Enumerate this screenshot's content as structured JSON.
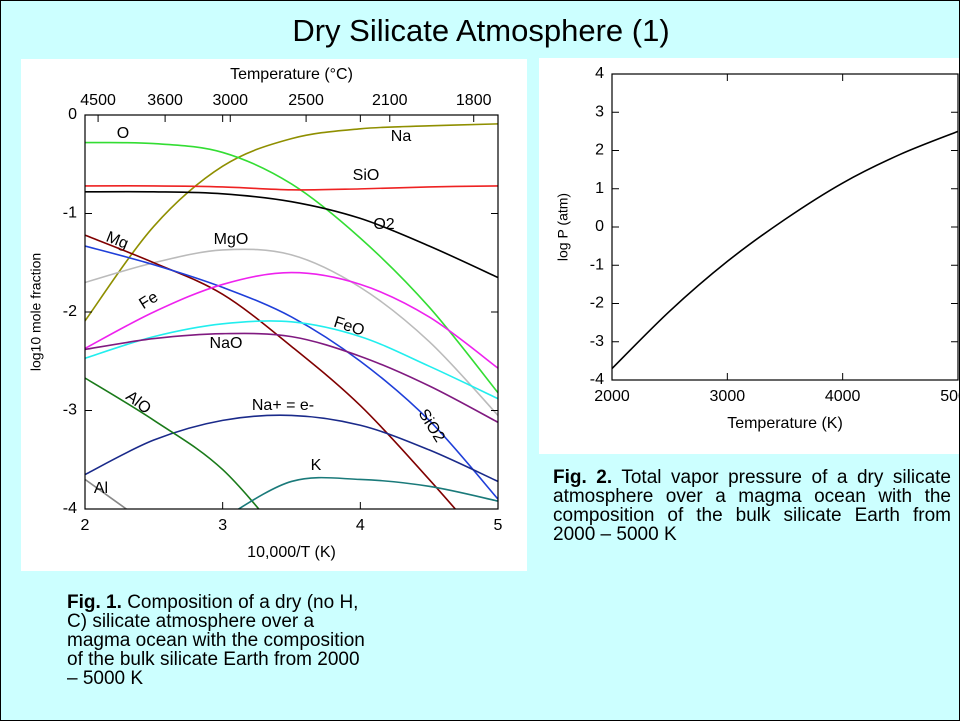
{
  "title": "Dry Silicate Atmosphere (1)",
  "chart_data": [
    {
      "type": "line",
      "xlabel": "10,000/T (K)",
      "ylabel": "log10 mole fraction",
      "x2label": "Temperature (°C)",
      "caption_label": "Fig. 1.",
      "caption": "Composition of a dry (no H, C) silicate atmosphere over a magma ocean with the composition of the bulk silicate Earth from 2000 – 5000 K",
      "x": [
        2,
        2.5,
        3,
        3.5,
        4,
        4.5,
        5
      ],
      "xlim": [
        2,
        5
      ],
      "xticks": [
        2,
        3,
        4,
        5
      ],
      "ylim": [
        -4,
        0
      ],
      "yticks": [
        0,
        -1,
        -2,
        -3,
        -4
      ],
      "x2ticks": [
        4500,
        3600,
        3000,
        2500,
        2100,
        1800
      ],
      "series": [
        {
          "name": "Na",
          "color": "#8f8f00",
          "values": [
            -2.09,
            -1.13,
            -0.52,
            -0.24,
            -0.14,
            -0.11,
            -0.09
          ]
        },
        {
          "name": "SiO",
          "color": "#33dd33",
          "values": [
            -0.28,
            -0.29,
            -0.38,
            -0.7,
            -1.25,
            -1.95,
            -2.82
          ]
        },
        {
          "name": "O2",
          "color": "#ee2222",
          "values": [
            -0.72,
            -0.72,
            -0.73,
            -0.76,
            -0.75,
            -0.73,
            -0.72
          ]
        },
        {
          "name": "O",
          "color": "#000000",
          "values": [
            -0.78,
            -0.78,
            -0.8,
            -0.88,
            -1.05,
            -1.33,
            -1.65
          ]
        },
        {
          "name": "Mg",
          "color": "#bbbbbb",
          "values": [
            -1.7,
            -1.5,
            -1.37,
            -1.42,
            -1.75,
            -2.3,
            -3.05
          ]
        },
        {
          "name": "MgO",
          "color": "#800000",
          "values": [
            -1.22,
            -1.5,
            -1.82,
            -2.35,
            -2.95,
            -3.7,
            -4.5
          ]
        },
        {
          "name": "SiO2",
          "color": "#1f3fd9",
          "values": [
            -1.33,
            -1.52,
            -1.75,
            -2.05,
            -2.5,
            -3.1,
            -3.9
          ]
        },
        {
          "name": "Fe",
          "color": "#ee22ee",
          "values": [
            -2.37,
            -2.0,
            -1.72,
            -1.6,
            -1.72,
            -2.05,
            -2.57
          ]
        },
        {
          "name": "FeO",
          "color": "#22eeee",
          "values": [
            -2.47,
            -2.25,
            -2.12,
            -2.1,
            -2.25,
            -2.55,
            -2.88
          ]
        },
        {
          "name": "NaO",
          "color": "#801a80",
          "values": [
            -2.38,
            -2.27,
            -2.22,
            -2.25,
            -2.45,
            -2.75,
            -3.12
          ]
        },
        {
          "name": "Na+ = e-",
          "color": "#1a2a8a",
          "values": [
            -3.65,
            -3.3,
            -3.1,
            -3.05,
            -3.15,
            -3.4,
            -3.72
          ]
        },
        {
          "name": "AlO",
          "color": "#1a7a1a",
          "values": [
            -2.67,
            -3.1,
            -3.6,
            -4.4,
            null,
            null,
            null
          ]
        },
        {
          "name": "Al",
          "color": "#888888",
          "values": [
            -3.7,
            -4.2,
            null,
            null,
            null,
            null,
            null
          ]
        },
        {
          "name": "K",
          "color": "#1a7a7a",
          "values": [
            null,
            null,
            -4.1,
            -3.72,
            -3.7,
            -3.77,
            -3.92
          ]
        }
      ]
    },
    {
      "type": "line",
      "xlabel": "Temperature (K)",
      "ylabel": "log P (atm)",
      "caption_label": "Fig. 2.",
      "caption": "Total vapor pressure of a dry silicate atmosphere over a magma ocean with the composition of the bulk silicate Earth from 2000 – 5000 K",
      "x": [
        2000,
        2500,
        3000,
        3500,
        4000,
        4500,
        5000
      ],
      "xlim": [
        2000,
        5000
      ],
      "xticks": [
        2000,
        3000,
        4000,
        5000
      ],
      "ylim": [
        -4,
        4
      ],
      "yticks": [
        4,
        3,
        2,
        1,
        0,
        -1,
        -2,
        -3,
        -4
      ],
      "series": [
        {
          "color": "#000000",
          "values": [
            -3.7,
            -2.2,
            -0.9,
            0.2,
            1.15,
            1.9,
            2.5
          ]
        }
      ]
    }
  ]
}
